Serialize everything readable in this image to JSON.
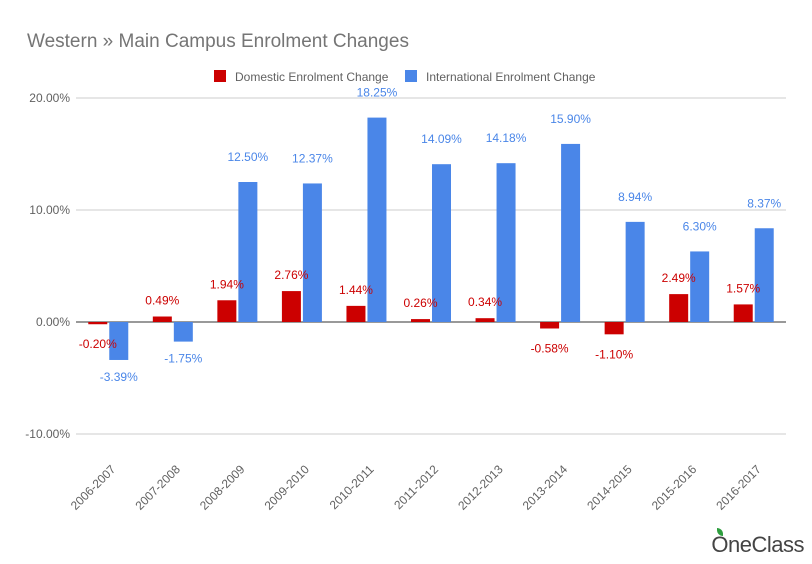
{
  "chart_data": {
    "type": "bar",
    "title": "Western » Main Campus Enrolment Changes",
    "categories": [
      "2006-2007",
      "2007-2008",
      "2008-2009",
      "2009-2010",
      "2010-2011",
      "2011-2012",
      "2012-2013",
      "2013-2014",
      "2014-2015",
      "2015-2016",
      "2016-2017"
    ],
    "series": [
      {
        "name": "Domestic Enrolment Change",
        "color": "#cc0000",
        "values": [
          -0.2,
          0.49,
          1.94,
          2.76,
          1.44,
          0.26,
          0.34,
          -0.58,
          -1.1,
          2.49,
          1.57
        ],
        "labels": [
          "-0.20%",
          "0.49%",
          "1.94%",
          "2.76%",
          "1.44%",
          "0.26%",
          "0.34%",
          "-0.58%",
          "-1.10%",
          "2.49%",
          "1.57%"
        ]
      },
      {
        "name": "International Enrolment Change",
        "color": "#4a86e8",
        "values": [
          -3.39,
          -1.75,
          12.5,
          12.37,
          18.25,
          14.09,
          14.18,
          15.9,
          8.94,
          6.3,
          8.37
        ],
        "labels": [
          "-3.39%",
          "-1.75%",
          "12.50%",
          "12.37%",
          "18.25%",
          "14.09%",
          "14.18%",
          "15.90%",
          "8.94%",
          "6.30%",
          "8.37%"
        ]
      }
    ],
    "ylim": [
      -10,
      20
    ],
    "yticks": [
      20,
      10,
      0,
      -10
    ],
    "ytick_labels": [
      "20.00%",
      "10.00%",
      "0.00%",
      "-10.00%"
    ],
    "legend_position": "top-center",
    "grid": true
  },
  "watermark": {
    "text": "OneClass"
  }
}
